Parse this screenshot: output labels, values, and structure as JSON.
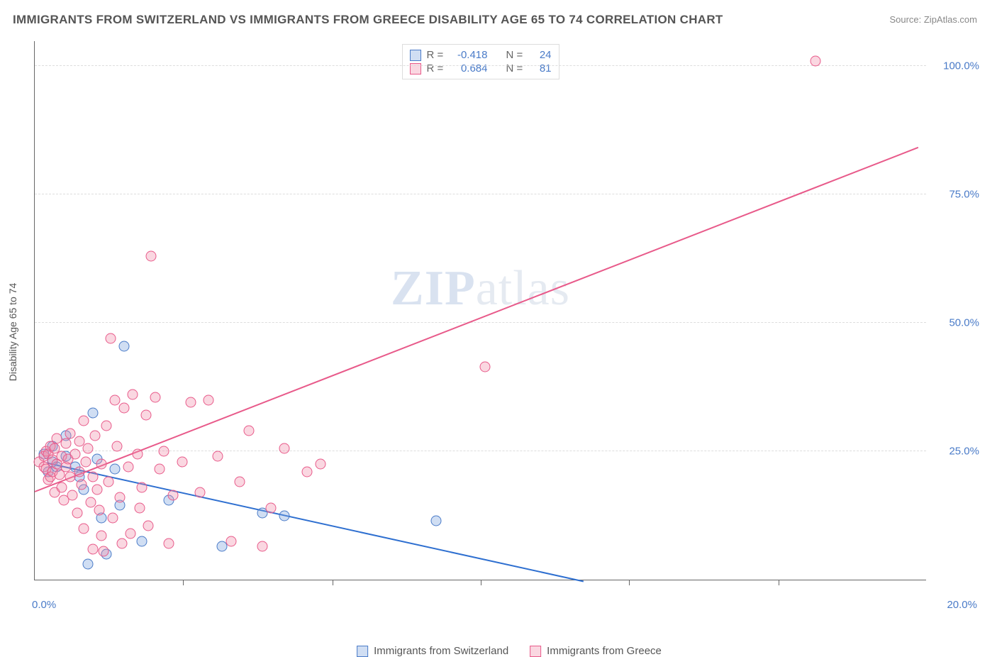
{
  "title": "IMMIGRANTS FROM SWITZERLAND VS IMMIGRANTS FROM GREECE DISABILITY AGE 65 TO 74 CORRELATION CHART",
  "source_prefix": "Source: ",
  "source_name": "ZipAtlas.com",
  "ylabel": "Disability Age 65 to 74",
  "watermark_a": "ZIP",
  "watermark_b": "atlas",
  "chart": {
    "type": "scatter",
    "xlim": [
      0,
      20
    ],
    "ylim": [
      0,
      105
    ],
    "xtick_labels": {
      "0": "0.0%",
      "20": "20.0%"
    },
    "ytick_values": [
      25,
      50,
      75,
      100
    ],
    "ytick_labels": [
      "25.0%",
      "50.0%",
      "75.0%",
      "100.0%"
    ],
    "xtick_minor": [
      3.33,
      6.67,
      10.0,
      13.33,
      16.67
    ],
    "background_color": "#ffffff",
    "grid_color": "#dddddd",
    "axis_color": "#666666",
    "label_color": "#4a7bc8",
    "marker_radius": 7.5,
    "marker_border_width": 1.2,
    "line_width": 2
  },
  "series": [
    {
      "name": "Immigrants from Switzerland",
      "fill": "rgba(120,160,220,0.35)",
      "stroke": "#4a7bc8",
      "line_color": "#2e6fd0",
      "R": "-0.418",
      "N": "24",
      "trend": {
        "x1": 0.3,
        "y1": 22.5,
        "x2": 12.3,
        "y2": -0.5
      },
      "points": [
        [
          0.2,
          24.5
        ],
        [
          0.3,
          21.0
        ],
        [
          0.4,
          26.0
        ],
        [
          0.4,
          23.0
        ],
        [
          0.5,
          22.0
        ],
        [
          0.7,
          24.0
        ],
        [
          0.7,
          28.0
        ],
        [
          0.9,
          22.0
        ],
        [
          1.0,
          20.0
        ],
        [
          1.1,
          17.5
        ],
        [
          1.2,
          3.0
        ],
        [
          1.3,
          32.5
        ],
        [
          1.4,
          23.5
        ],
        [
          1.5,
          12.0
        ],
        [
          1.6,
          5.0
        ],
        [
          1.8,
          21.5
        ],
        [
          1.9,
          14.5
        ],
        [
          2.0,
          45.5
        ],
        [
          2.4,
          7.5
        ],
        [
          3.0,
          15.5
        ],
        [
          4.2,
          6.5
        ],
        [
          5.1,
          13.0
        ],
        [
          5.6,
          12.5
        ],
        [
          9.0,
          11.5
        ]
      ]
    },
    {
      "name": "Immigrants from Greece",
      "fill": "rgba(240,140,170,0.35)",
      "stroke": "#e85a8a",
      "line_color": "#e85a8a",
      "R": "0.684",
      "N": "81",
      "trend": {
        "x1": 0.0,
        "y1": 17.0,
        "x2": 19.8,
        "y2": 84.0
      },
      "points": [
        [
          0.1,
          23.0
        ],
        [
          0.2,
          24.0
        ],
        [
          0.2,
          22.0
        ],
        [
          0.25,
          25.0
        ],
        [
          0.25,
          21.5
        ],
        [
          0.3,
          24.5
        ],
        [
          0.3,
          19.5
        ],
        [
          0.35,
          26.0
        ],
        [
          0.35,
          20.0
        ],
        [
          0.4,
          23.3
        ],
        [
          0.4,
          21.0
        ],
        [
          0.45,
          25.5
        ],
        [
          0.45,
          17.0
        ],
        [
          0.5,
          22.5
        ],
        [
          0.5,
          27.5
        ],
        [
          0.55,
          20.5
        ],
        [
          0.6,
          24.0
        ],
        [
          0.6,
          18.0
        ],
        [
          0.65,
          15.5
        ],
        [
          0.7,
          26.5
        ],
        [
          0.7,
          22.0
        ],
        [
          0.75,
          23.5
        ],
        [
          0.8,
          20.0
        ],
        [
          0.8,
          28.5
        ],
        [
          0.85,
          16.5
        ],
        [
          0.9,
          24.5
        ],
        [
          0.95,
          13.0
        ],
        [
          1.0,
          27.0
        ],
        [
          1.0,
          21.0
        ],
        [
          1.05,
          18.5
        ],
        [
          1.1,
          31.0
        ],
        [
          1.1,
          10.0
        ],
        [
          1.15,
          23.0
        ],
        [
          1.2,
          25.5
        ],
        [
          1.25,
          15.0
        ],
        [
          1.3,
          20.0
        ],
        [
          1.3,
          6.0
        ],
        [
          1.35,
          28.0
        ],
        [
          1.4,
          17.5
        ],
        [
          1.45,
          13.5
        ],
        [
          1.5,
          22.5
        ],
        [
          1.5,
          8.5
        ],
        [
          1.55,
          5.5
        ],
        [
          1.6,
          30.0
        ],
        [
          1.65,
          19.0
        ],
        [
          1.7,
          47.0
        ],
        [
          1.75,
          12.0
        ],
        [
          1.8,
          35.0
        ],
        [
          1.85,
          26.0
        ],
        [
          1.9,
          16.0
        ],
        [
          1.95,
          7.0
        ],
        [
          2.0,
          33.5
        ],
        [
          2.1,
          22.0
        ],
        [
          2.15,
          9.0
        ],
        [
          2.2,
          36.0
        ],
        [
          2.3,
          24.5
        ],
        [
          2.35,
          14.0
        ],
        [
          2.4,
          18.0
        ],
        [
          2.5,
          32.0
        ],
        [
          2.55,
          10.5
        ],
        [
          2.6,
          63.0
        ],
        [
          2.7,
          35.5
        ],
        [
          2.8,
          21.5
        ],
        [
          2.9,
          25.0
        ],
        [
          3.0,
          7.0
        ],
        [
          3.1,
          16.5
        ],
        [
          3.3,
          23.0
        ],
        [
          3.5,
          34.5
        ],
        [
          3.7,
          17.0
        ],
        [
          3.9,
          35.0
        ],
        [
          4.1,
          24.0
        ],
        [
          4.4,
          7.5
        ],
        [
          4.8,
          29.0
        ],
        [
          5.1,
          6.5
        ],
        [
          5.3,
          14.0
        ],
        [
          5.6,
          25.5
        ],
        [
          6.1,
          21.0
        ],
        [
          6.4,
          22.5
        ],
        [
          10.1,
          41.5
        ],
        [
          17.5,
          101.0
        ],
        [
          4.6,
          19.0
        ]
      ]
    }
  ],
  "legend_labels": {
    "R": "R =",
    "N": "N ="
  }
}
